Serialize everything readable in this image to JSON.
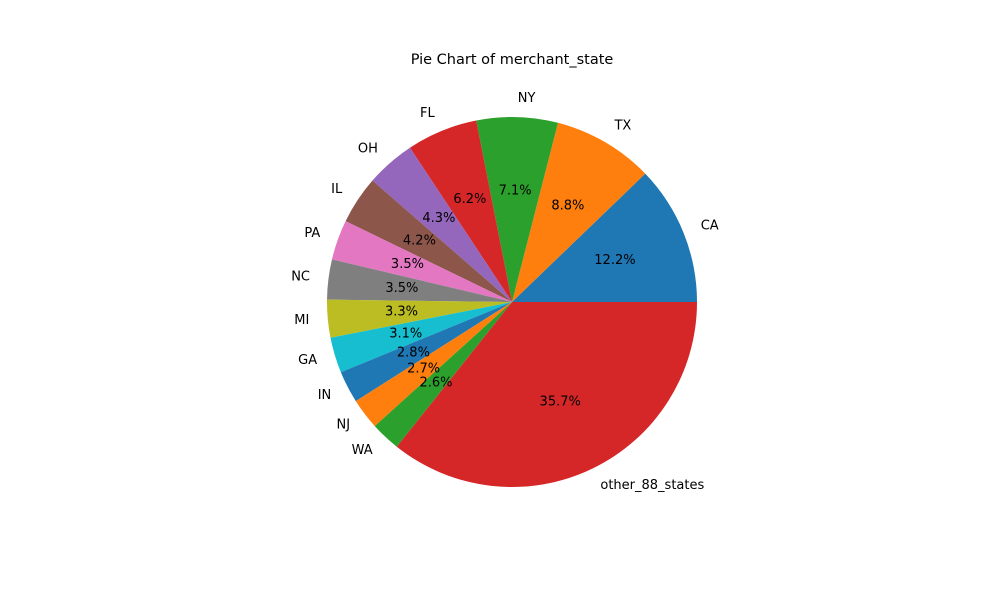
{
  "chart_data": {
    "type": "pie",
    "title": "Pie Chart of merchant_state",
    "start_angle_deg": 0,
    "direction": "counterclockwise",
    "slices": [
      {
        "label": "CA",
        "value": 12.2,
        "pct_label": "12.2%",
        "color": "#1f77b4"
      },
      {
        "label": "TX",
        "value": 8.8,
        "pct_label": "8.8%",
        "color": "#ff7f0e"
      },
      {
        "label": "NY",
        "value": 7.1,
        "pct_label": "7.1%",
        "color": "#2ca02c"
      },
      {
        "label": "FL",
        "value": 6.2,
        "pct_label": "6.2%",
        "color": "#d62728"
      },
      {
        "label": "OH",
        "value": 4.3,
        "pct_label": "4.3%",
        "color": "#9467bd"
      },
      {
        "label": "IL",
        "value": 4.2,
        "pct_label": "4.2%",
        "color": "#8c564b"
      },
      {
        "label": "PA",
        "value": 3.5,
        "pct_label": "3.5%",
        "color": "#e377c2"
      },
      {
        "label": "NC",
        "value": 3.5,
        "pct_label": "3.5%",
        "color": "#7f7f7f"
      },
      {
        "label": "MI",
        "value": 3.3,
        "pct_label": "3.3%",
        "color": "#bcbd22"
      },
      {
        "label": "GA",
        "value": 3.1,
        "pct_label": "3.1%",
        "color": "#17becf"
      },
      {
        "label": "IN",
        "value": 2.8,
        "pct_label": "2.8%",
        "color": "#1f77b4"
      },
      {
        "label": "NJ",
        "value": 2.7,
        "pct_label": "2.7%",
        "color": "#ff7f0e"
      },
      {
        "label": "WA",
        "value": 2.6,
        "pct_label": "2.6%",
        "color": "#2ca02c"
      },
      {
        "label": "other_88_states",
        "value": 35.7,
        "pct_label": "35.7%",
        "color": "#d62728"
      }
    ]
  }
}
